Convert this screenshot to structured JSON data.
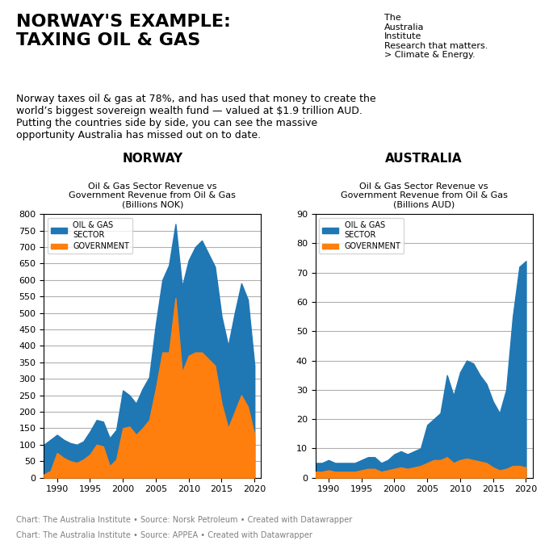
{
  "title": "NORWAY'S EXAMPLE:\nTAXING OIL & GAS",
  "subtitle": "Norway taxes oil & gas at 78%, and has used that money to create the\nworld’s biggest sovereign wealth fund — valued at $1.9 trillion AUD.\nPutting the countries side by side, you can see the massive\nopportunity Australia has missed out on to date.",
  "annotations": [
    "The",
    "Australia",
    "Institute",
    "Research that matters.",
    "> Climate & Energy."
  ],
  "chart_data": [
    {
      "type": "area",
      "title": "NORWAY",
      "subtitle": "Oil & Gas Sector Revenue vs\nGovernment Revenue from Oil & Gas\n(Billions NOK)",
      "x": [
        1988,
        1989,
        1990,
        1991,
        1992,
        1993,
        1994,
        1995,
        1996,
        1997,
        1998,
        1999,
        2000,
        2001,
        2002,
        2003,
        2004,
        2005,
        2006,
        2007,
        2008,
        2009,
        2010,
        2011,
        2012,
        2013,
        2014,
        2015,
        2016,
        2017,
        2018,
        2019,
        2020
      ],
      "series": [
        {
          "name": "OIL & GAS\nSECTOR",
          "values": [
            100,
            115,
            130,
            115,
            105,
            100,
            110,
            140,
            175,
            170,
            120,
            145,
            265,
            250,
            225,
            270,
            305,
            465,
            600,
            645,
            770,
            580,
            660,
            700,
            720,
            680,
            640,
            490,
            400,
            500,
            590,
            540,
            340
          ]
        },
        {
          "name": "GOVERNMENT",
          "values": [
            10,
            20,
            75,
            60,
            50,
            45,
            55,
            70,
            100,
            95,
            35,
            55,
            150,
            155,
            130,
            150,
            175,
            270,
            380,
            380,
            545,
            320,
            370,
            380,
            380,
            360,
            340,
            225,
            150,
            200,
            250,
            215,
            130
          ]
        }
      ],
      "xlim": [
        1988,
        2021
      ],
      "xticks": [
        1990,
        1995,
        2000,
        2005,
        2010,
        2015,
        2020
      ],
      "ylim": [
        0,
        800
      ],
      "yticks": [
        0,
        50,
        100,
        150,
        200,
        250,
        300,
        350,
        400,
        450,
        500,
        550,
        600,
        650,
        700,
        750,
        800
      ],
      "grid": "y",
      "legend": "upper left",
      "annotations": [
        "Chart: The Australia Institute • Source: Norsk Petroleum • Created with Datawrapper"
      ]
    },
    {
      "type": "area",
      "title": "AUSTRALIA",
      "subtitle": "Oil & Gas Sector Revenue vs\nGovernment Revenue from Oil & Gas\n(Billions AUD)",
      "x": [
        1988,
        1989,
        1990,
        1991,
        1992,
        1993,
        1994,
        1995,
        1996,
        1997,
        1998,
        1999,
        2000,
        2001,
        2002,
        2003,
        2004,
        2005,
        2006,
        2007,
        2008,
        2009,
        2010,
        2011,
        2012,
        2013,
        2014,
        2015,
        2016,
        2017,
        2018,
        2019,
        2020
      ],
      "series": [
        {
          "name": "OIL & GAS\nSECTOR",
          "values": [
            5,
            5,
            6,
            5,
            5,
            5,
            5,
            6,
            7,
            7,
            5,
            6,
            8,
            9,
            8,
            9,
            10,
            18,
            20,
            22,
            35,
            28,
            36,
            40,
            39,
            35,
            32,
            26,
            22,
            30,
            55,
            72,
            74
          ]
        },
        {
          "name": "GOVERNMENT",
          "values": [
            2,
            2,
            2.5,
            2,
            2,
            2,
            2,
            2.5,
            3,
            3,
            2,
            2.5,
            3,
            3.5,
            3,
            3.5,
            4,
            5,
            6,
            6,
            7,
            5,
            6,
            6.5,
            6,
            5.5,
            5,
            3.5,
            2.5,
            3,
            4,
            4,
            3.5
          ]
        }
      ],
      "xlim": [
        1988,
        2021
      ],
      "xticks": [
        1990,
        1995,
        2000,
        2005,
        2010,
        2015,
        2020
      ],
      "ylim": [
        0,
        90
      ],
      "yticks": [
        0,
        10,
        20,
        30,
        40,
        50,
        60,
        70,
        80,
        90
      ],
      "grid": "y",
      "legend": "upper left",
      "annotations": [
        "Chart: The Australia Institute • Source: APPEA • Created with Datawrapper"
      ]
    }
  ]
}
